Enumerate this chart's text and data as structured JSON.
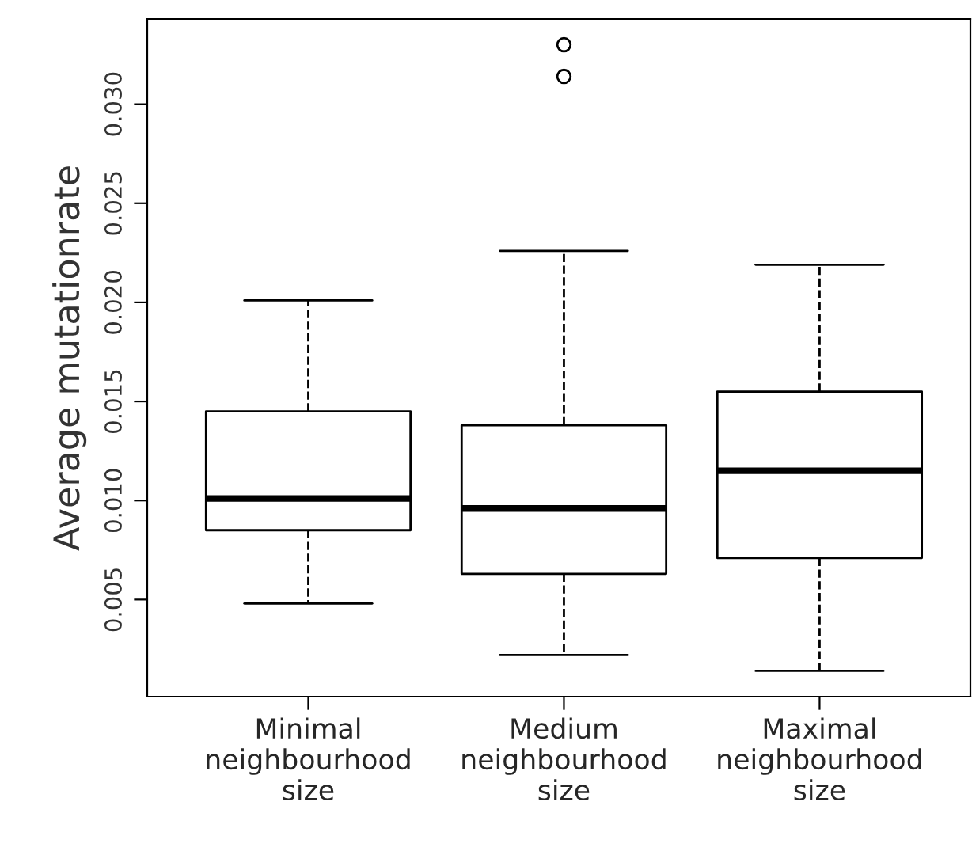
{
  "chart_data": {
    "type": "box",
    "ylabel": "Average mutationrate",
    "categories": [
      "Minimal\nneighbourhood\nsize",
      "Medium\nneighbourhood\nsize",
      "Maximal\nneighbourhood\nsize"
    ],
    "boxes": [
      {
        "low": 0.0048,
        "q1": 0.0085,
        "median": 0.0101,
        "q3": 0.0145,
        "high": 0.0201
      },
      {
        "low": 0.0022,
        "q1": 0.0063,
        "median": 0.0096,
        "q3": 0.0138,
        "high": 0.0226,
        "outliers": [
          0.0314,
          0.033
        ]
      },
      {
        "low": 0.0014,
        "q1": 0.0071,
        "median": 0.0115,
        "q3": 0.0155,
        "high": 0.0219
      }
    ],
    "ylim": [
      0.0001,
      0.0343
    ],
    "yticks": [
      0.005,
      {
        "value": 0.01,
        "label": "0.010"
      },
      0.015,
      {
        "value": 0.02,
        "label": "0.020"
      },
      0.025,
      {
        "value": 0.03,
        "label": "0.030"
      }
    ],
    "grid": false
  }
}
